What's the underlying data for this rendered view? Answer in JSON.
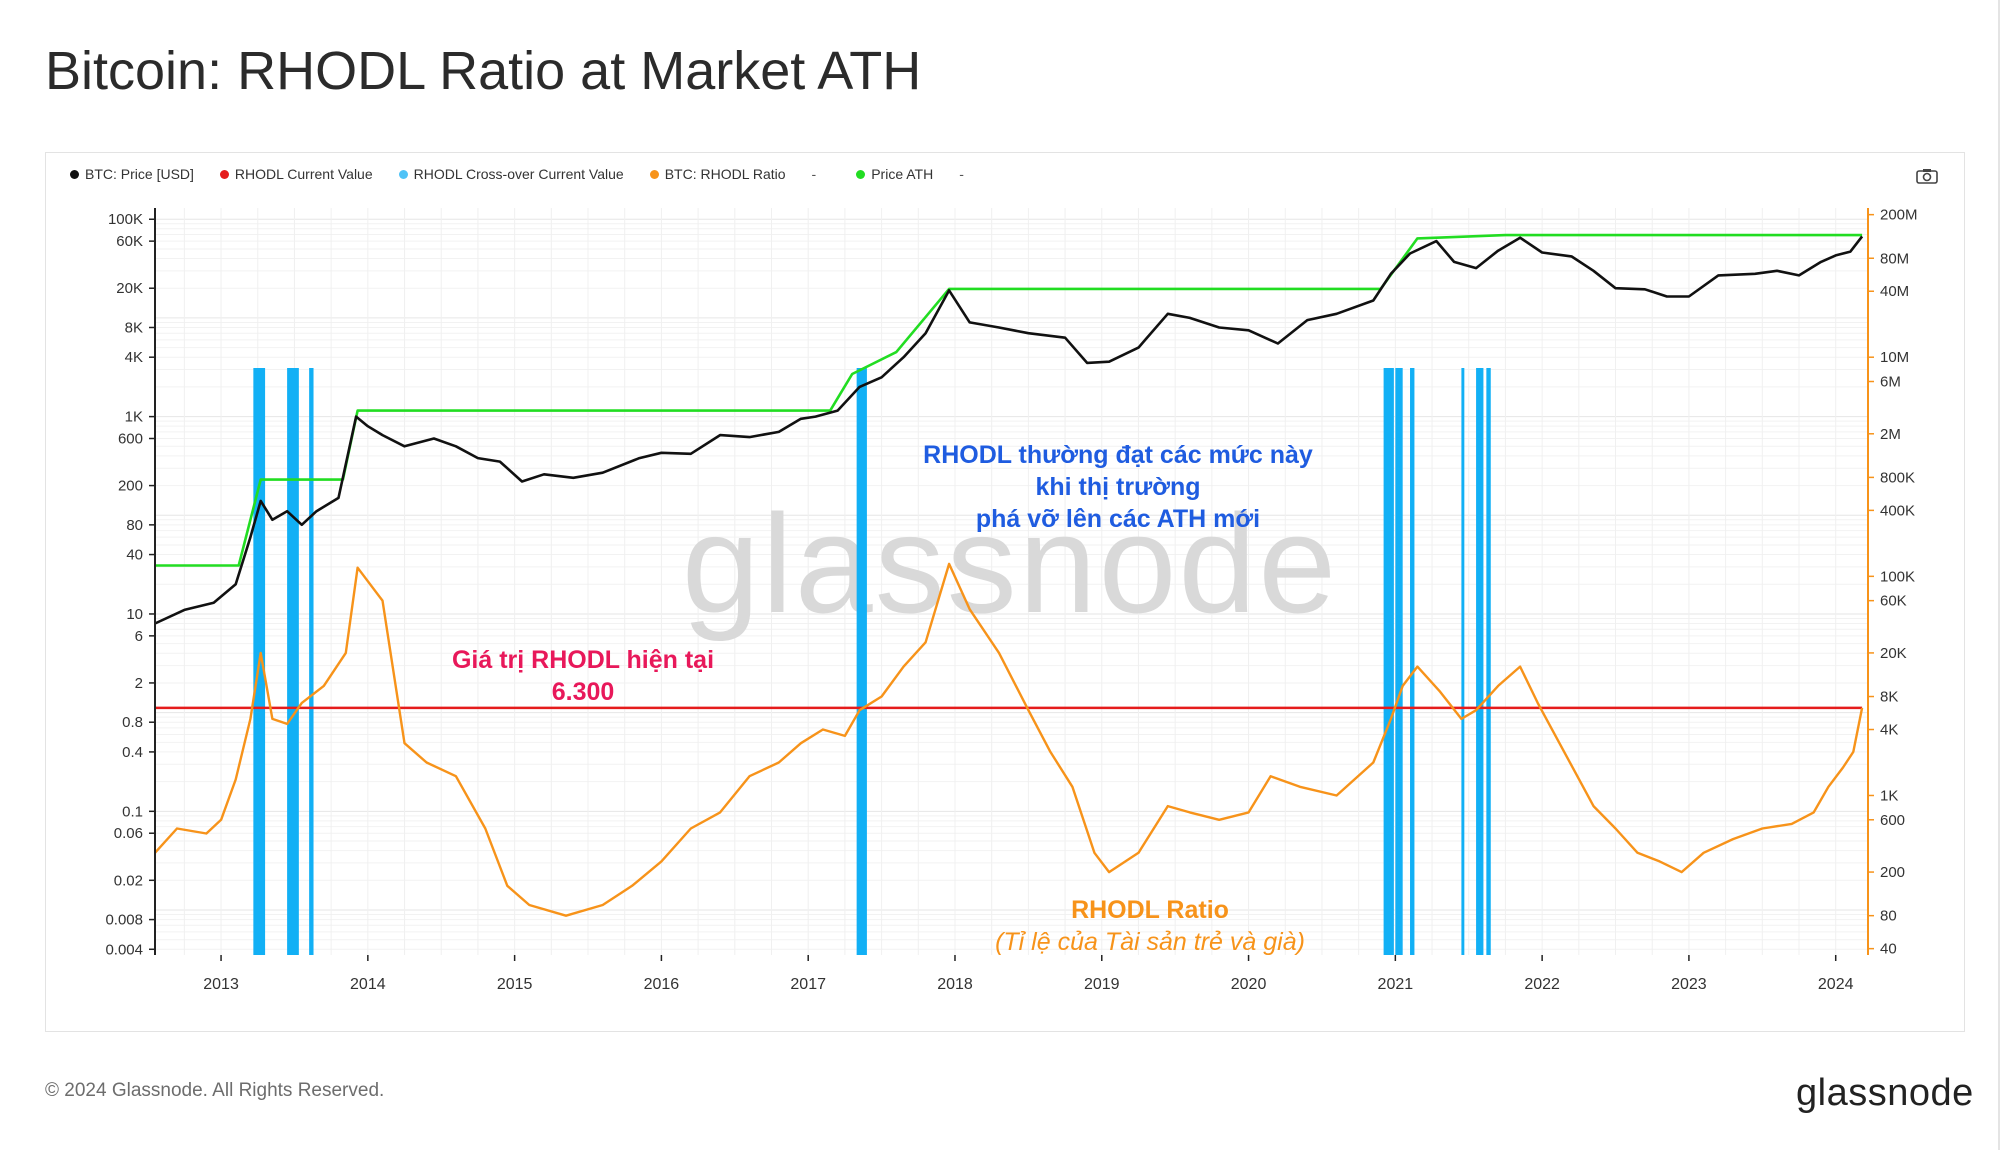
{
  "title": "Bitcoin: RHODL Ratio at Market ATH",
  "legend": [
    {
      "label": "BTC: Price [USD]",
      "color": "#111111"
    },
    {
      "label": "RHODL Current Value",
      "color": "#e51c1c"
    },
    {
      "label": "RHODL Cross-over Current Value",
      "color": "#4fc3f7"
    },
    {
      "label": "BTC: RHODL Ratio",
      "color": "#f7931a"
    },
    {
      "label": "-",
      "color": ""
    },
    {
      "label": "Price ATH",
      "color": "#22dd22"
    },
    {
      "label": "-",
      "color": ""
    }
  ],
  "icons": {
    "camera": "camera-icon"
  },
  "annotations": {
    "ath_note_line1": "RHODL thường đạt các mức này",
    "ath_note_line2": "khi thị trường",
    "ath_note_line3": "phá vỡ lên các ATH mới",
    "current_label_line1": "Giá trị RHODL hiện tại",
    "current_label_line2": "6.300",
    "ratio_label_line1": "RHODL Ratio",
    "ratio_label_line2": "(Tỉ lệ của Tài sản trẻ và già)",
    "watermark": "glassnode"
  },
  "footer": {
    "copyright": "© 2024 Glassnode. All Rights Reserved.",
    "brand": "glassnode"
  },
  "chart_data": {
    "type": "line",
    "x_range": [
      "2012-07",
      "2024-03"
    ],
    "x_ticks": [
      "2013",
      "2014",
      "2015",
      "2016",
      "2017",
      "2018",
      "2019",
      "2020",
      "2021",
      "2022",
      "2023",
      "2024"
    ],
    "y_left_scale": "log",
    "y_left_ticks": [
      "100K",
      "60K",
      "20K",
      "8K",
      "4K",
      "1K",
      "600",
      "200",
      "80",
      "40",
      "10",
      "6",
      "2",
      "0.8",
      "0.4",
      "0.1",
      "0.06",
      "0.02",
      "0.008",
      "0.004"
    ],
    "y_right_scale": "log",
    "y_right_ticks": [
      "200M",
      "80M",
      "40M",
      "10M",
      "6M",
      "2M",
      "800K",
      "400K",
      "100K",
      "60K",
      "20K",
      "8K",
      "4K",
      "1K",
      "600",
      "200",
      "80",
      "40"
    ],
    "grid": true,
    "legend_position": "top-left",
    "colors": {
      "price": "#111111",
      "ratio": "#f7931a",
      "ath": "#22dd22",
      "current": "#e51c1c",
      "crossover": "#29b6f6"
    },
    "rhodl_current_value": 6300,
    "series": [
      {
        "name": "BTC: Price [USD]",
        "axis": "left",
        "points": [
          [
            2012.55,
            8
          ],
          [
            2012.75,
            11
          ],
          [
            2012.95,
            13
          ],
          [
            2013.1,
            20
          ],
          [
            2013.2,
            60
          ],
          [
            2013.27,
            140
          ],
          [
            2013.35,
            90
          ],
          [
            2013.45,
            110
          ],
          [
            2013.55,
            80
          ],
          [
            2013.65,
            110
          ],
          [
            2013.8,
            150
          ],
          [
            2013.92,
            1000
          ],
          [
            2014.0,
            800
          ],
          [
            2014.1,
            650
          ],
          [
            2014.25,
            500
          ],
          [
            2014.45,
            600
          ],
          [
            2014.6,
            500
          ],
          [
            2014.75,
            380
          ],
          [
            2014.9,
            350
          ],
          [
            2015.05,
            220
          ],
          [
            2015.2,
            260
          ],
          [
            2015.4,
            240
          ],
          [
            2015.6,
            270
          ],
          [
            2015.85,
            380
          ],
          [
            2016.0,
            430
          ],
          [
            2016.2,
            420
          ],
          [
            2016.4,
            650
          ],
          [
            2016.6,
            620
          ],
          [
            2016.8,
            700
          ],
          [
            2016.95,
            950
          ],
          [
            2017.05,
            1000
          ],
          [
            2017.2,
            1150
          ],
          [
            2017.35,
            2000
          ],
          [
            2017.5,
            2500
          ],
          [
            2017.65,
            4000
          ],
          [
            2017.8,
            7000
          ],
          [
            2017.96,
            19000
          ],
          [
            2018.1,
            9000
          ],
          [
            2018.3,
            8000
          ],
          [
            2018.5,
            7000
          ],
          [
            2018.75,
            6300
          ],
          [
            2018.9,
            3500
          ],
          [
            2019.05,
            3600
          ],
          [
            2019.25,
            5000
          ],
          [
            2019.45,
            11000
          ],
          [
            2019.6,
            10000
          ],
          [
            2019.8,
            8000
          ],
          [
            2020.0,
            7500
          ],
          [
            2020.2,
            5500
          ],
          [
            2020.4,
            9500
          ],
          [
            2020.6,
            11000
          ],
          [
            2020.85,
            15000
          ],
          [
            2020.97,
            28000
          ],
          [
            2021.1,
            45000
          ],
          [
            2021.28,
            60000
          ],
          [
            2021.4,
            37000
          ],
          [
            2021.55,
            32000
          ],
          [
            2021.7,
            48000
          ],
          [
            2021.85,
            65000
          ],
          [
            2022.0,
            46000
          ],
          [
            2022.2,
            42000
          ],
          [
            2022.35,
            30000
          ],
          [
            2022.5,
            20000
          ],
          [
            2022.7,
            19500
          ],
          [
            2022.85,
            16500
          ],
          [
            2023.0,
            16500
          ],
          [
            2023.2,
            27000
          ],
          [
            2023.45,
            28000
          ],
          [
            2023.6,
            30000
          ],
          [
            2023.75,
            27000
          ],
          [
            2023.9,
            37000
          ],
          [
            2024.0,
            43000
          ],
          [
            2024.1,
            47000
          ],
          [
            2024.18,
            67000
          ]
        ]
      },
      {
        "name": "BTC: RHODL Ratio",
        "axis": "right",
        "points": [
          [
            2012.55,
            300
          ],
          [
            2012.7,
            500
          ],
          [
            2012.9,
            450
          ],
          [
            2013.0,
            600
          ],
          [
            2013.1,
            1400
          ],
          [
            2013.2,
            5000
          ],
          [
            2013.27,
            20000
          ],
          [
            2013.35,
            5000
          ],
          [
            2013.45,
            4500
          ],
          [
            2013.55,
            7000
          ],
          [
            2013.7,
            10000
          ],
          [
            2013.85,
            20000
          ],
          [
            2013.93,
            120000
          ],
          [
            2014.1,
            60000
          ],
          [
            2014.25,
            3000
          ],
          [
            2014.4,
            2000
          ],
          [
            2014.6,
            1500
          ],
          [
            2014.8,
            500
          ],
          [
            2014.95,
            150
          ],
          [
            2015.1,
            100
          ],
          [
            2015.35,
            80
          ],
          [
            2015.6,
            100
          ],
          [
            2015.8,
            150
          ],
          [
            2016.0,
            250
          ],
          [
            2016.2,
            500
          ],
          [
            2016.4,
            700
          ],
          [
            2016.6,
            1500
          ],
          [
            2016.8,
            2000
          ],
          [
            2016.95,
            3000
          ],
          [
            2017.1,
            4000
          ],
          [
            2017.25,
            3500
          ],
          [
            2017.35,
            6000
          ],
          [
            2017.5,
            8000
          ],
          [
            2017.65,
            15000
          ],
          [
            2017.8,
            25000
          ],
          [
            2017.96,
            130000
          ],
          [
            2018.1,
            50000
          ],
          [
            2018.3,
            20000
          ],
          [
            2018.5,
            6000
          ],
          [
            2018.65,
            2500
          ],
          [
            2018.8,
            1200
          ],
          [
            2018.95,
            300
          ],
          [
            2019.05,
            200
          ],
          [
            2019.25,
            300
          ],
          [
            2019.45,
            800
          ],
          [
            2019.6,
            700
          ],
          [
            2019.8,
            600
          ],
          [
            2020.0,
            700
          ],
          [
            2020.15,
            1500
          ],
          [
            2020.35,
            1200
          ],
          [
            2020.6,
            1000
          ],
          [
            2020.85,
            2000
          ],
          [
            2020.97,
            5000
          ],
          [
            2021.05,
            10000
          ],
          [
            2021.15,
            15000
          ],
          [
            2021.3,
            9000
          ],
          [
            2021.45,
            5000
          ],
          [
            2021.55,
            6000
          ],
          [
            2021.7,
            10000
          ],
          [
            2021.85,
            15000
          ],
          [
            2021.97,
            7000
          ],
          [
            2022.15,
            2500
          ],
          [
            2022.35,
            800
          ],
          [
            2022.5,
            500
          ],
          [
            2022.65,
            300
          ],
          [
            2022.8,
            250
          ],
          [
            2022.95,
            200
          ],
          [
            2023.1,
            300
          ],
          [
            2023.3,
            400
          ],
          [
            2023.5,
            500
          ],
          [
            2023.7,
            550
          ],
          [
            2023.85,
            700
          ],
          [
            2023.95,
            1200
          ],
          [
            2024.05,
            1800
          ],
          [
            2024.12,
            2500
          ],
          [
            2024.18,
            6300
          ]
        ]
      },
      {
        "name": "Price ATH",
        "axis": "left",
        "points": [
          [
            2012.55,
            31
          ],
          [
            2013.12,
            31
          ],
          [
            2013.27,
            230
          ],
          [
            2013.83,
            230
          ],
          [
            2013.93,
            1150
          ],
          [
            2017.15,
            1150
          ],
          [
            2017.3,
            2700
          ],
          [
            2017.6,
            4500
          ],
          [
            2017.96,
            19700
          ],
          [
            2020.9,
            19700
          ],
          [
            2021.15,
            64000
          ],
          [
            2021.75,
            69000
          ],
          [
            2024.18,
            69000
          ]
        ]
      },
      {
        "name": "RHODL Current Value",
        "axis": "right",
        "points": [
          [
            2012.55,
            6300
          ],
          [
            2024.18,
            6300
          ]
        ]
      }
    ],
    "crossover_bands": [
      [
        2013.22,
        2013.3
      ],
      [
        2013.45,
        2013.53
      ],
      [
        2013.6,
        2013.63
      ],
      [
        2017.33,
        2017.4
      ],
      [
        2020.92,
        2020.99
      ],
      [
        2021.0,
        2021.05
      ],
      [
        2021.1,
        2021.13
      ],
      [
        2021.45,
        2021.47
      ],
      [
        2021.55,
        2021.6
      ],
      [
        2021.62,
        2021.65
      ]
    ]
  }
}
